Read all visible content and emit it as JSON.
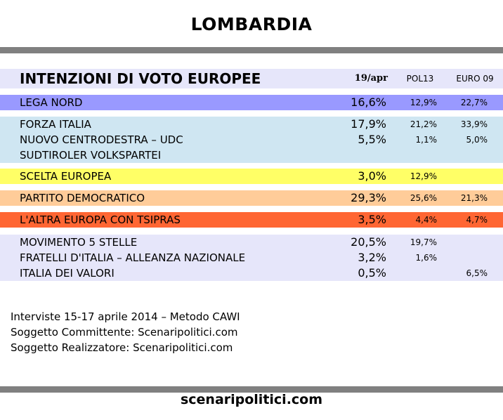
{
  "title": "LOMBARDIA",
  "header": {
    "label": "INTENZIONI DI VOTO EUROPEE",
    "col1": "19/apr",
    "col2": "POL13",
    "col3": "EURO 09"
  },
  "rows": [
    {
      "party": "LEGA NORD",
      "v19": "16,6%",
      "pol13": "12,9%",
      "euro09": "22,7%"
    },
    {
      "party": "FORZA ITALIA",
      "v19": "17,9%",
      "pol13": "21,2%",
      "euro09": "33,9%"
    },
    {
      "party": "NUOVO CENTRODESTRA – UDC",
      "v19": "5,5%",
      "pol13": "1,1%",
      "euro09": "5,0%"
    },
    {
      "party": "SUDTIROLER VOLKSPARTEI",
      "v19": "",
      "pol13": "",
      "euro09": ""
    },
    {
      "party": "SCELTA EUROPEA",
      "v19": "3,0%",
      "pol13": "12,9%",
      "euro09": ""
    },
    {
      "party": "PARTITO DEMOCRATICO",
      "v19": "29,3%",
      "pol13": "25,6%",
      "euro09": "21,3%"
    },
    {
      "party": "L'ALTRA EUROPA CON TSIPRAS",
      "v19": "3,5%",
      "pol13": "4,4%",
      "euro09": "4,7%"
    },
    {
      "party": "MOVIMENTO 5 STELLE",
      "v19": "20,5%",
      "pol13": "19,7%",
      "euro09": ""
    },
    {
      "party": "FRATELLI D'ITALIA – ALLEANZA NAZIONALE",
      "v19": "3,2%",
      "pol13": "1,6%",
      "euro09": ""
    },
    {
      "party": "ITALIA DEI VALORI",
      "v19": "0,5%",
      "pol13": "",
      "euro09": "6,5%"
    }
  ],
  "colors": {
    "header_bg": "#e6e6fa",
    "lega": "#9999ff",
    "centrodestra": "#cfe6f2",
    "scelta": "#ffff66",
    "pd": "#ffcc99",
    "tsipras": "#ff6633",
    "others": "#e6e6fa",
    "rule": "#808080"
  },
  "footer": {
    "line1": "Interviste 15-17 aprile 2014 – Metodo CAWI",
    "line2": "Soggetto Committente: Scenaripolitici.com",
    "line3": "Soggetto Realizzatore: Scenaripolitici.com"
  },
  "site": "scenaripolitici.com"
}
